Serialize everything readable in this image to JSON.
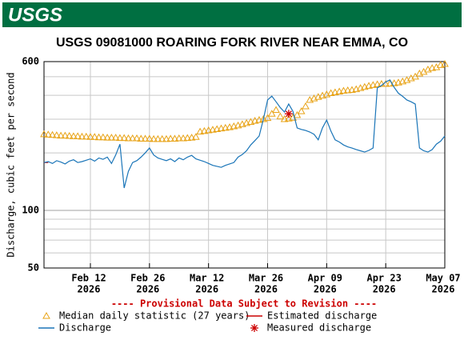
{
  "header": {
    "logo": "USGS"
  },
  "chart_data": {
    "type": "line",
    "title": "USGS 09081000 ROARING FORK RIVER NEAR EMMA, CO",
    "y_label": "Discharge, cubic feet per second",
    "annotation": "---- Provisional Data Subject to Revision ----",
    "log_y": true,
    "grid": true,
    "ylim": [
      50,
      600
    ],
    "yticks": [
      50,
      100,
      600
    ],
    "yminor": [
      60,
      70,
      80,
      90,
      200,
      300,
      400,
      500
    ],
    "xlim": [
      "2026-02-01",
      "2026-05-07"
    ],
    "xticks": [
      {
        "value": "2026-02-12",
        "label": [
          "Feb 12",
          "2026"
        ]
      },
      {
        "value": "2026-02-26",
        "label": [
          "Feb 26",
          "2026"
        ]
      },
      {
        "value": "2026-03-12",
        "label": [
          "Mar 12",
          "2026"
        ]
      },
      {
        "value": "2026-03-26",
        "label": [
          "Mar 26",
          "2026"
        ]
      },
      {
        "value": "2026-04-09",
        "label": [
          "Apr 09",
          "2026"
        ]
      },
      {
        "value": "2026-04-23",
        "label": [
          "Apr 23",
          "2026"
        ]
      },
      {
        "value": "2026-05-07",
        "label": [
          "May 07",
          "2026"
        ]
      }
    ],
    "x": [
      "2026-02-01",
      "2026-02-02",
      "2026-02-03",
      "2026-02-04",
      "2026-02-05",
      "2026-02-06",
      "2026-02-07",
      "2026-02-08",
      "2026-02-09",
      "2026-02-10",
      "2026-02-11",
      "2026-02-12",
      "2026-02-13",
      "2026-02-14",
      "2026-02-15",
      "2026-02-16",
      "2026-02-17",
      "2026-02-18",
      "2026-02-19",
      "2026-02-20",
      "2026-02-21",
      "2026-02-22",
      "2026-02-23",
      "2026-02-24",
      "2026-02-25",
      "2026-02-26",
      "2026-02-27",
      "2026-02-28",
      "2026-03-01",
      "2026-03-02",
      "2026-03-03",
      "2026-03-04",
      "2026-03-05",
      "2026-03-06",
      "2026-03-07",
      "2026-03-08",
      "2026-03-09",
      "2026-03-10",
      "2026-03-11",
      "2026-03-12",
      "2026-03-13",
      "2026-03-14",
      "2026-03-15",
      "2026-03-16",
      "2026-03-17",
      "2026-03-18",
      "2026-03-19",
      "2026-03-20",
      "2026-03-21",
      "2026-03-22",
      "2026-03-23",
      "2026-03-24",
      "2026-03-25",
      "2026-03-26",
      "2026-03-27",
      "2026-03-28",
      "2026-03-29",
      "2026-03-30",
      "2026-03-31",
      "2026-04-01",
      "2026-04-02",
      "2026-04-03",
      "2026-04-04",
      "2026-04-05",
      "2026-04-06",
      "2026-04-07",
      "2026-04-08",
      "2026-04-09",
      "2026-04-10",
      "2026-04-11",
      "2026-04-12",
      "2026-04-13",
      "2026-04-14",
      "2026-04-15",
      "2026-04-16",
      "2026-04-17",
      "2026-04-18",
      "2026-04-19",
      "2026-04-20",
      "2026-04-21",
      "2026-04-22",
      "2026-04-23",
      "2026-04-24",
      "2026-04-25",
      "2026-04-26",
      "2026-04-27",
      "2026-04-28",
      "2026-04-29",
      "2026-04-30",
      "2026-05-01",
      "2026-05-02",
      "2026-05-03",
      "2026-05-04",
      "2026-05-05",
      "2026-05-06",
      "2026-05-07"
    ],
    "series": [
      {
        "name": "Median daily statistic (27 years)",
        "color": "#e8a317",
        "marker": "triangle",
        "values": [
          250,
          249,
          248,
          247,
          246,
          246,
          245,
          244,
          244,
          243,
          243,
          242,
          242,
          241,
          241,
          240,
          240,
          240,
          239,
          239,
          238,
          238,
          238,
          237,
          237,
          237,
          236,
          236,
          236,
          236,
          237,
          237,
          238,
          238,
          239,
          240,
          242,
          258,
          260,
          262,
          264,
          266,
          268,
          270,
          272,
          275,
          278,
          282,
          286,
          290,
          294,
          297,
          300,
          304,
          320,
          335,
          310,
          300,
          302,
          305,
          315,
          330,
          350,
          378,
          385,
          392,
          398,
          404,
          410,
          414,
          418,
          422,
          424,
          426,
          430,
          436,
          442,
          448,
          452,
          456,
          458,
          458,
          460,
          462,
          466,
          472,
          480,
          490,
          500,
          519,
          530,
          545,
          555,
          560,
          575,
          583
        ]
      },
      {
        "name": "Estimated discharge",
        "color": "#cc0000",
        "marker": "line",
        "x": [
          "2026-02-01",
          "2026-02-02"
        ],
        "values": [
          178,
          178
        ]
      },
      {
        "name": "Discharge",
        "color": "#1a75b8",
        "marker": "line",
        "values": [
          178,
          180,
          176,
          182,
          179,
          175,
          181,
          184,
          178,
          180,
          183,
          186,
          181,
          188,
          185,
          190,
          176,
          195,
          222,
          131,
          160,
          178,
          182,
          190,
          200,
          212,
          195,
          188,
          185,
          182,
          186,
          180,
          188,
          184,
          190,
          194,
          186,
          183,
          180,
          176,
          172,
          170,
          168,
          172,
          175,
          178,
          190,
          196,
          205,
          220,
          232,
          245,
          300,
          378,
          396,
          370,
          345,
          327,
          360,
          330,
          270,
          265,
          262,
          257,
          250,
          234,
          270,
          297,
          260,
          234,
          228,
          220,
          215,
          212,
          208,
          205,
          202,
          206,
          212,
          437,
          450,
          470,
          481,
          440,
          410,
          395,
          378,
          370,
          360,
          212,
          205,
          202,
          208,
          222,
          230,
          245
        ]
      },
      {
        "name": "Measured discharge",
        "color": "#cc0000",
        "marker": "asterisk",
        "x": [
          "2026-03-31"
        ],
        "values": [
          320
        ]
      }
    ]
  }
}
